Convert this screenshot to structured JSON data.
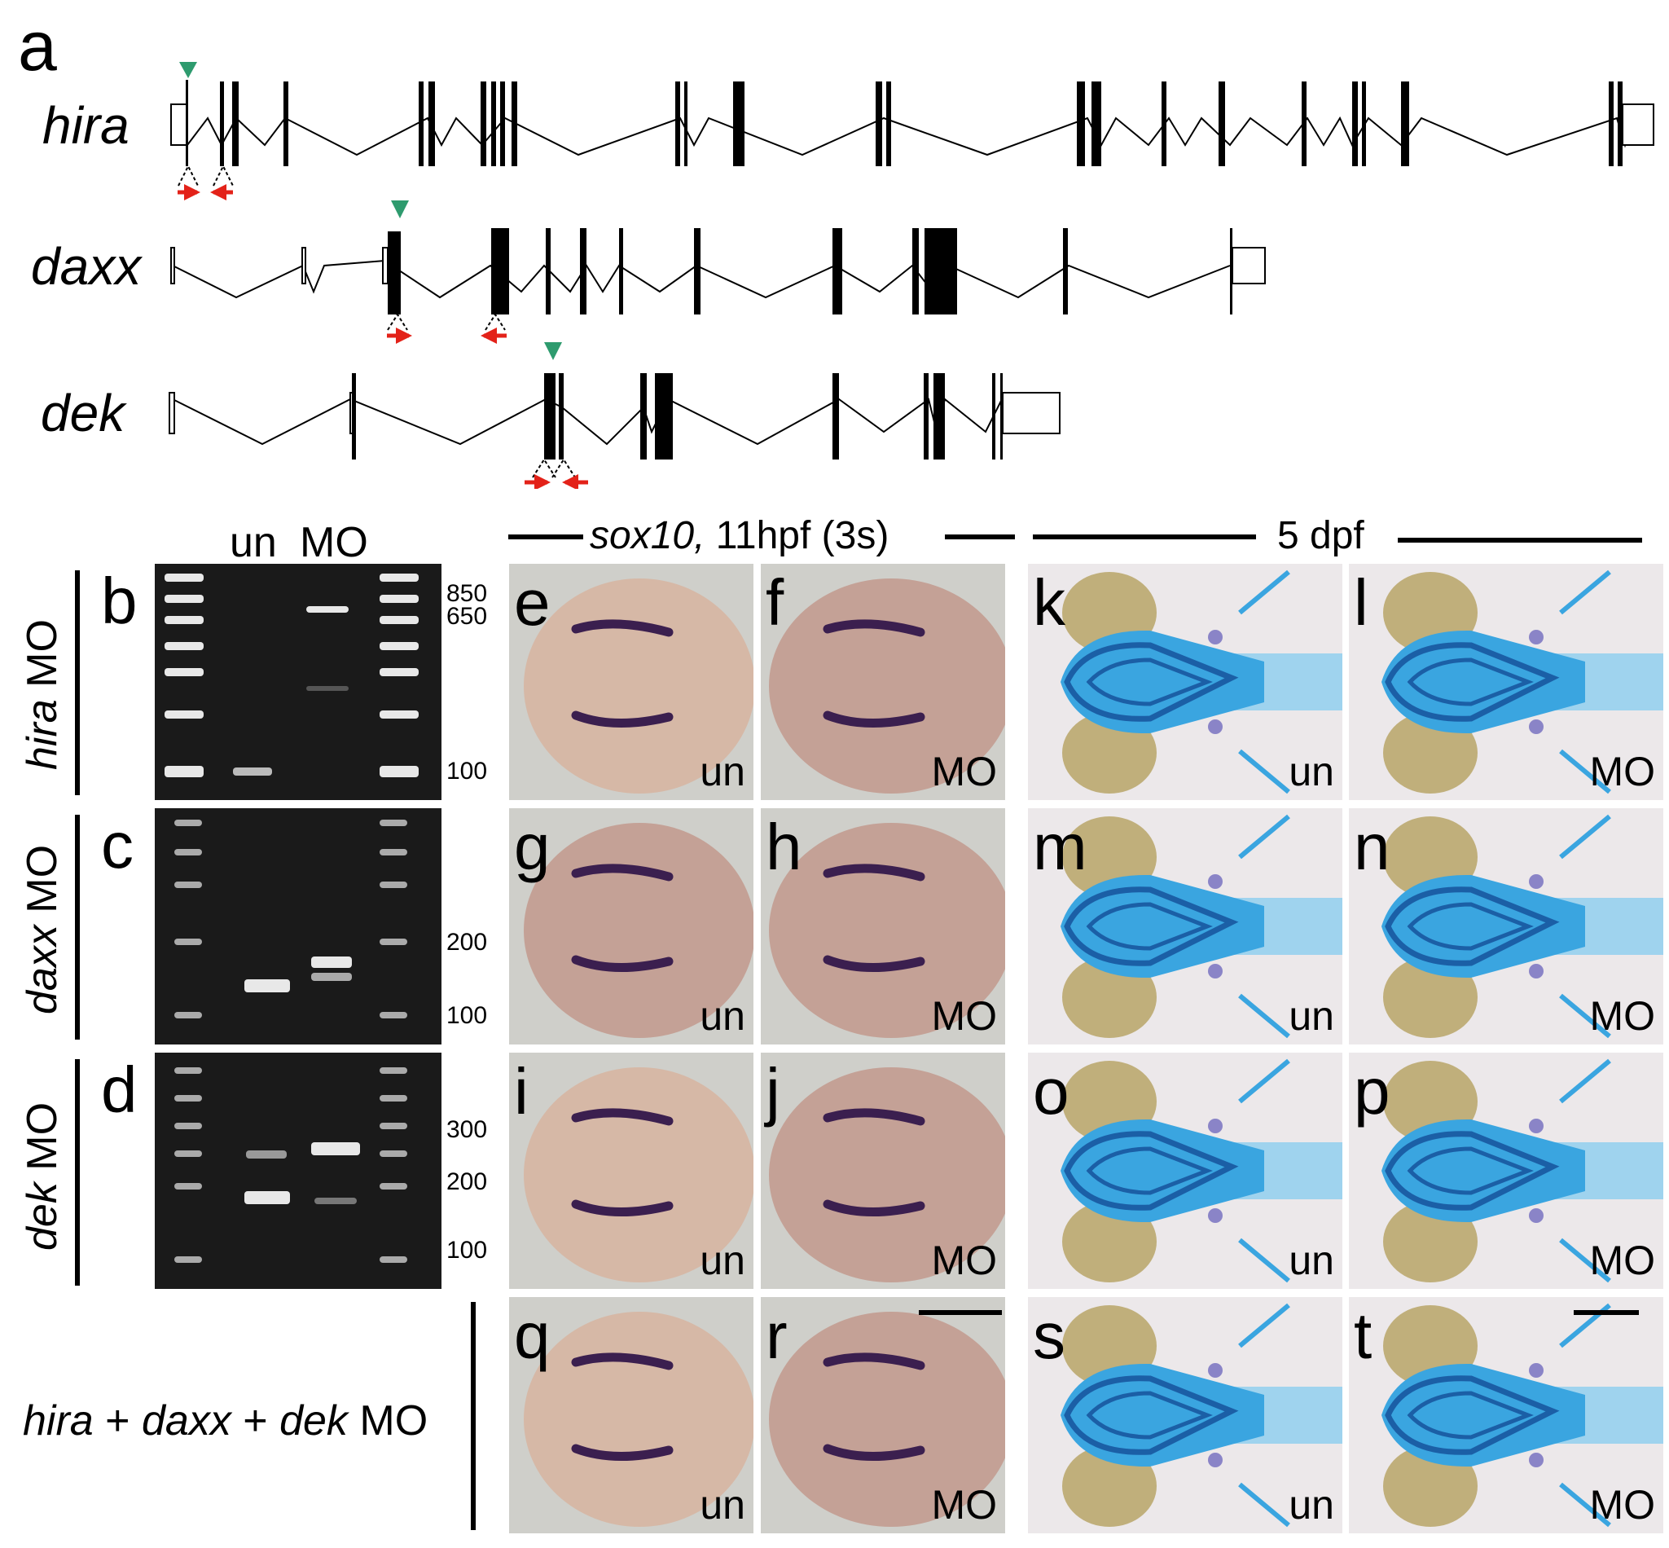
{
  "panel_a": {
    "letter": "a",
    "genes": [
      {
        "id": "hira",
        "name": "hira"
      },
      {
        "id": "daxx",
        "name": "daxx"
      },
      {
        "id": "dek",
        "name": "dek"
      }
    ]
  },
  "gels": {
    "lane_labels": {
      "un": "un",
      "mo": "MO"
    },
    "rows": [
      {
        "letter": "b",
        "gene": "hira",
        "suffix": " MO",
        "sizes": [
          "850",
          "650",
          "100"
        ]
      },
      {
        "letter": "c",
        "gene": "daxx",
        "suffix": " MO",
        "sizes": [
          "200",
          "100"
        ]
      },
      {
        "letter": "d",
        "gene": "dek",
        "suffix": " MO",
        "sizes": [
          "300",
          "200",
          "100"
        ]
      }
    ]
  },
  "headers": {
    "sox10_gene": "sox10,",
    "sox10_rest": " 11hpf (3s)",
    "dpf": "5 dpf"
  },
  "embryo_panels": [
    {
      "letter": "e",
      "tag": "un"
    },
    {
      "letter": "f",
      "tag": "MO"
    },
    {
      "letter": "g",
      "tag": "un"
    },
    {
      "letter": "h",
      "tag": "MO"
    },
    {
      "letter": "i",
      "tag": "un"
    },
    {
      "letter": "j",
      "tag": "MO"
    },
    {
      "letter": "q",
      "tag": "un"
    },
    {
      "letter": "r",
      "tag": "MO"
    }
  ],
  "larva_panels": [
    {
      "letter": "k",
      "tag": "un"
    },
    {
      "letter": "l",
      "tag": "MO"
    },
    {
      "letter": "m",
      "tag": "un"
    },
    {
      "letter": "n",
      "tag": "MO"
    },
    {
      "letter": "o",
      "tag": "un"
    },
    {
      "letter": "p",
      "tag": "MO"
    },
    {
      "letter": "s",
      "tag": "un"
    },
    {
      "letter": "t",
      "tag": "MO"
    }
  ],
  "combo": {
    "g1": "hira",
    "plus": " + ",
    "g2": "daxx",
    "g3": "dek",
    "suffix": " MO"
  },
  "colors": {
    "arrow": "#e32219",
    "marker": "#2e9b6e",
    "stain": "#2a7fd4",
    "embryo": "#c9a49a"
  }
}
